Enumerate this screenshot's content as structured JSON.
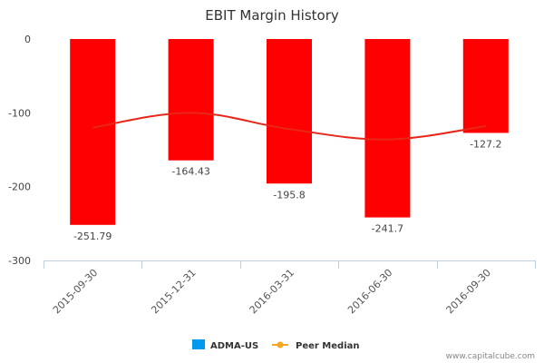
{
  "chart_data": {
    "type": "bar",
    "title": "EBIT Margin History",
    "categories": [
      "2015-09-30",
      "2015-12-31",
      "2016-03-31",
      "2016-06-30",
      "2016-09-30"
    ],
    "series": [
      {
        "name": "ADMA-US",
        "type": "bar",
        "values": [
          -251.79,
          -164.43,
          -195.8,
          -241.7,
          -127.2
        ],
        "data_labels": [
          "-251.79",
          "-164.43",
          "-195.8",
          "-241.7",
          "-127.2"
        ],
        "legend_color": "#0099ee",
        "bar_color": "#ff0000"
      },
      {
        "name": "Peer Median",
        "type": "line",
        "values": [
          -120,
          -100,
          -122,
          -136,
          -118
        ],
        "color": "#e8261a",
        "legend_color": "#f5a623"
      }
    ],
    "y_ticks": [
      0,
      -100,
      -200,
      -300
    ],
    "y_tick_labels": [
      "0",
      "-100",
      "-200",
      "-300"
    ],
    "ylim": [
      -300,
      0
    ],
    "grid": false,
    "legend_position": "bottom-center"
  },
  "credit": "www.capitalcube.com"
}
